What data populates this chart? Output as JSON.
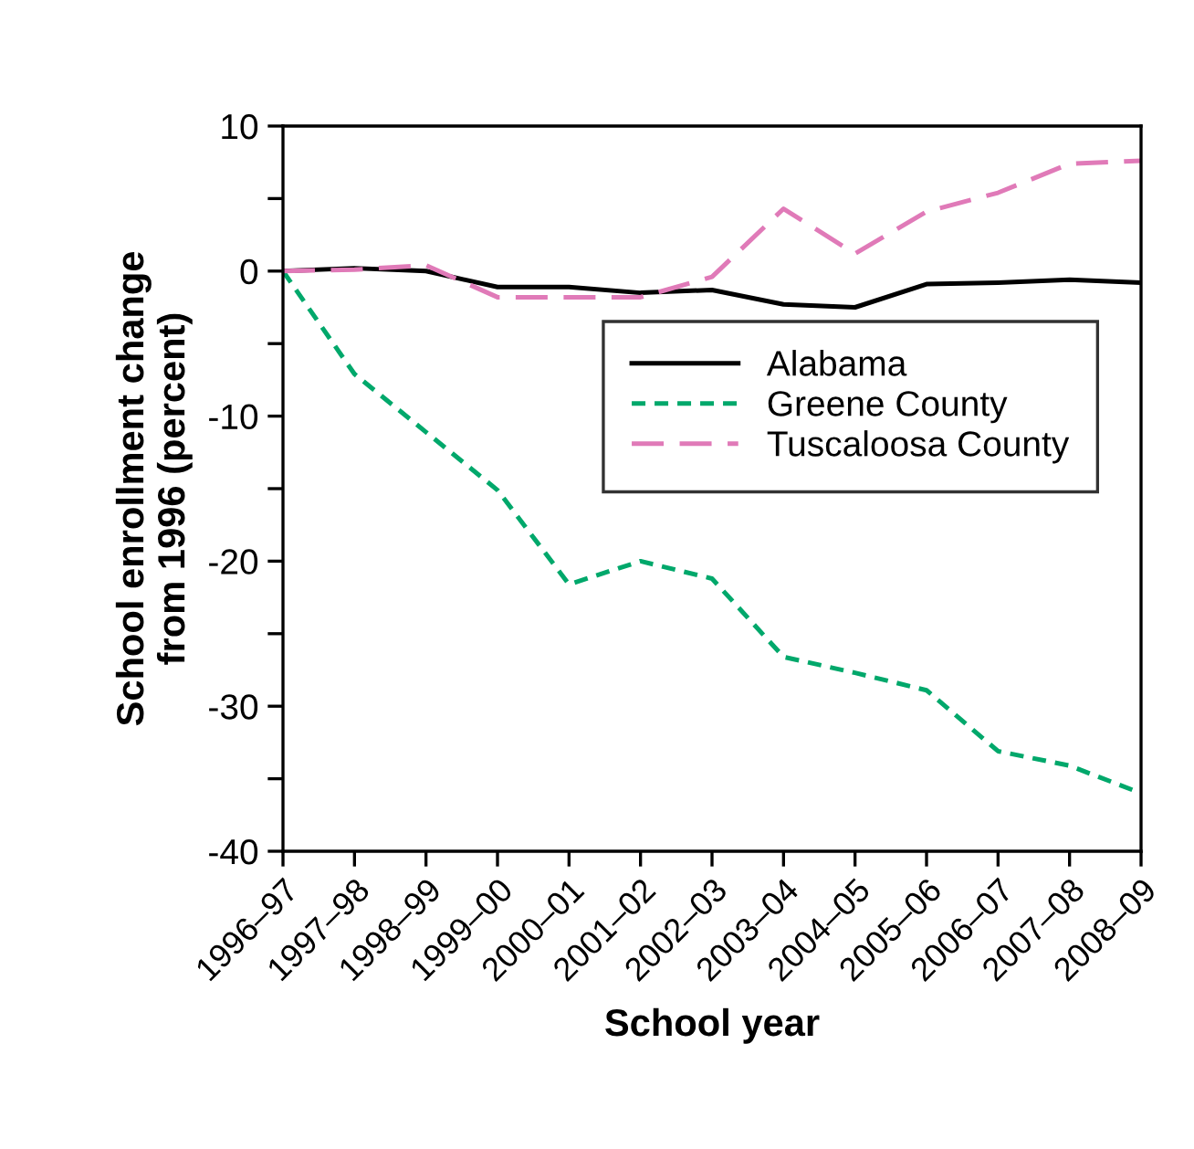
{
  "chart_data": {
    "type": "line",
    "xlabel": "School year",
    "ylabel": "School enrollment change\nfrom 1996 (percent)",
    "categories": [
      "1996–97",
      "1997–98",
      "1998–99",
      "1999–00",
      "2000–01",
      "2001–02",
      "2002–03",
      "2003–04",
      "2004–05",
      "2005–06",
      "2006–07",
      "2007–08",
      "2008–09"
    ],
    "series": [
      {
        "name": "Alabama",
        "color": "#000000",
        "line_style": "solid",
        "values": [
          0,
          0.2,
          0.0,
          -1.1,
          -1.1,
          -1.5,
          -1.3,
          -2.3,
          -2.5,
          -0.9,
          -0.8,
          -0.6,
          -0.8
        ]
      },
      {
        "name": "Greene County",
        "color": "#00a86b",
        "line_style": "dotted",
        "values": [
          0,
          -7.1,
          -11.1,
          -15.1,
          -21.6,
          -20.0,
          -21.2,
          -26.6,
          -27.7,
          -28.9,
          -33.1,
          -34.1,
          -36.0
        ]
      },
      {
        "name": "Tuscaloosa County",
        "color": "#e07ab8",
        "line_style": "dashed",
        "values": [
          0,
          0.1,
          0.4,
          -1.8,
          -1.8,
          -1.8,
          -0.4,
          4.3,
          1.2,
          4.1,
          5.4,
          7.4,
          7.6
        ]
      }
    ],
    "ylim": [
      -40,
      10
    ],
    "yticks": [
      -40,
      {
        "value": -35,
        "label": null
      },
      -30,
      {
        "value": -25,
        "label": null
      },
      -20,
      {
        "value": -15,
        "label": null
      },
      -10,
      {
        "value": -5,
        "label": null
      },
      0,
      {
        "value": 5,
        "label": null
      },
      10
    ],
    "grid": false,
    "legend": "top right",
    "marker": "none"
  }
}
